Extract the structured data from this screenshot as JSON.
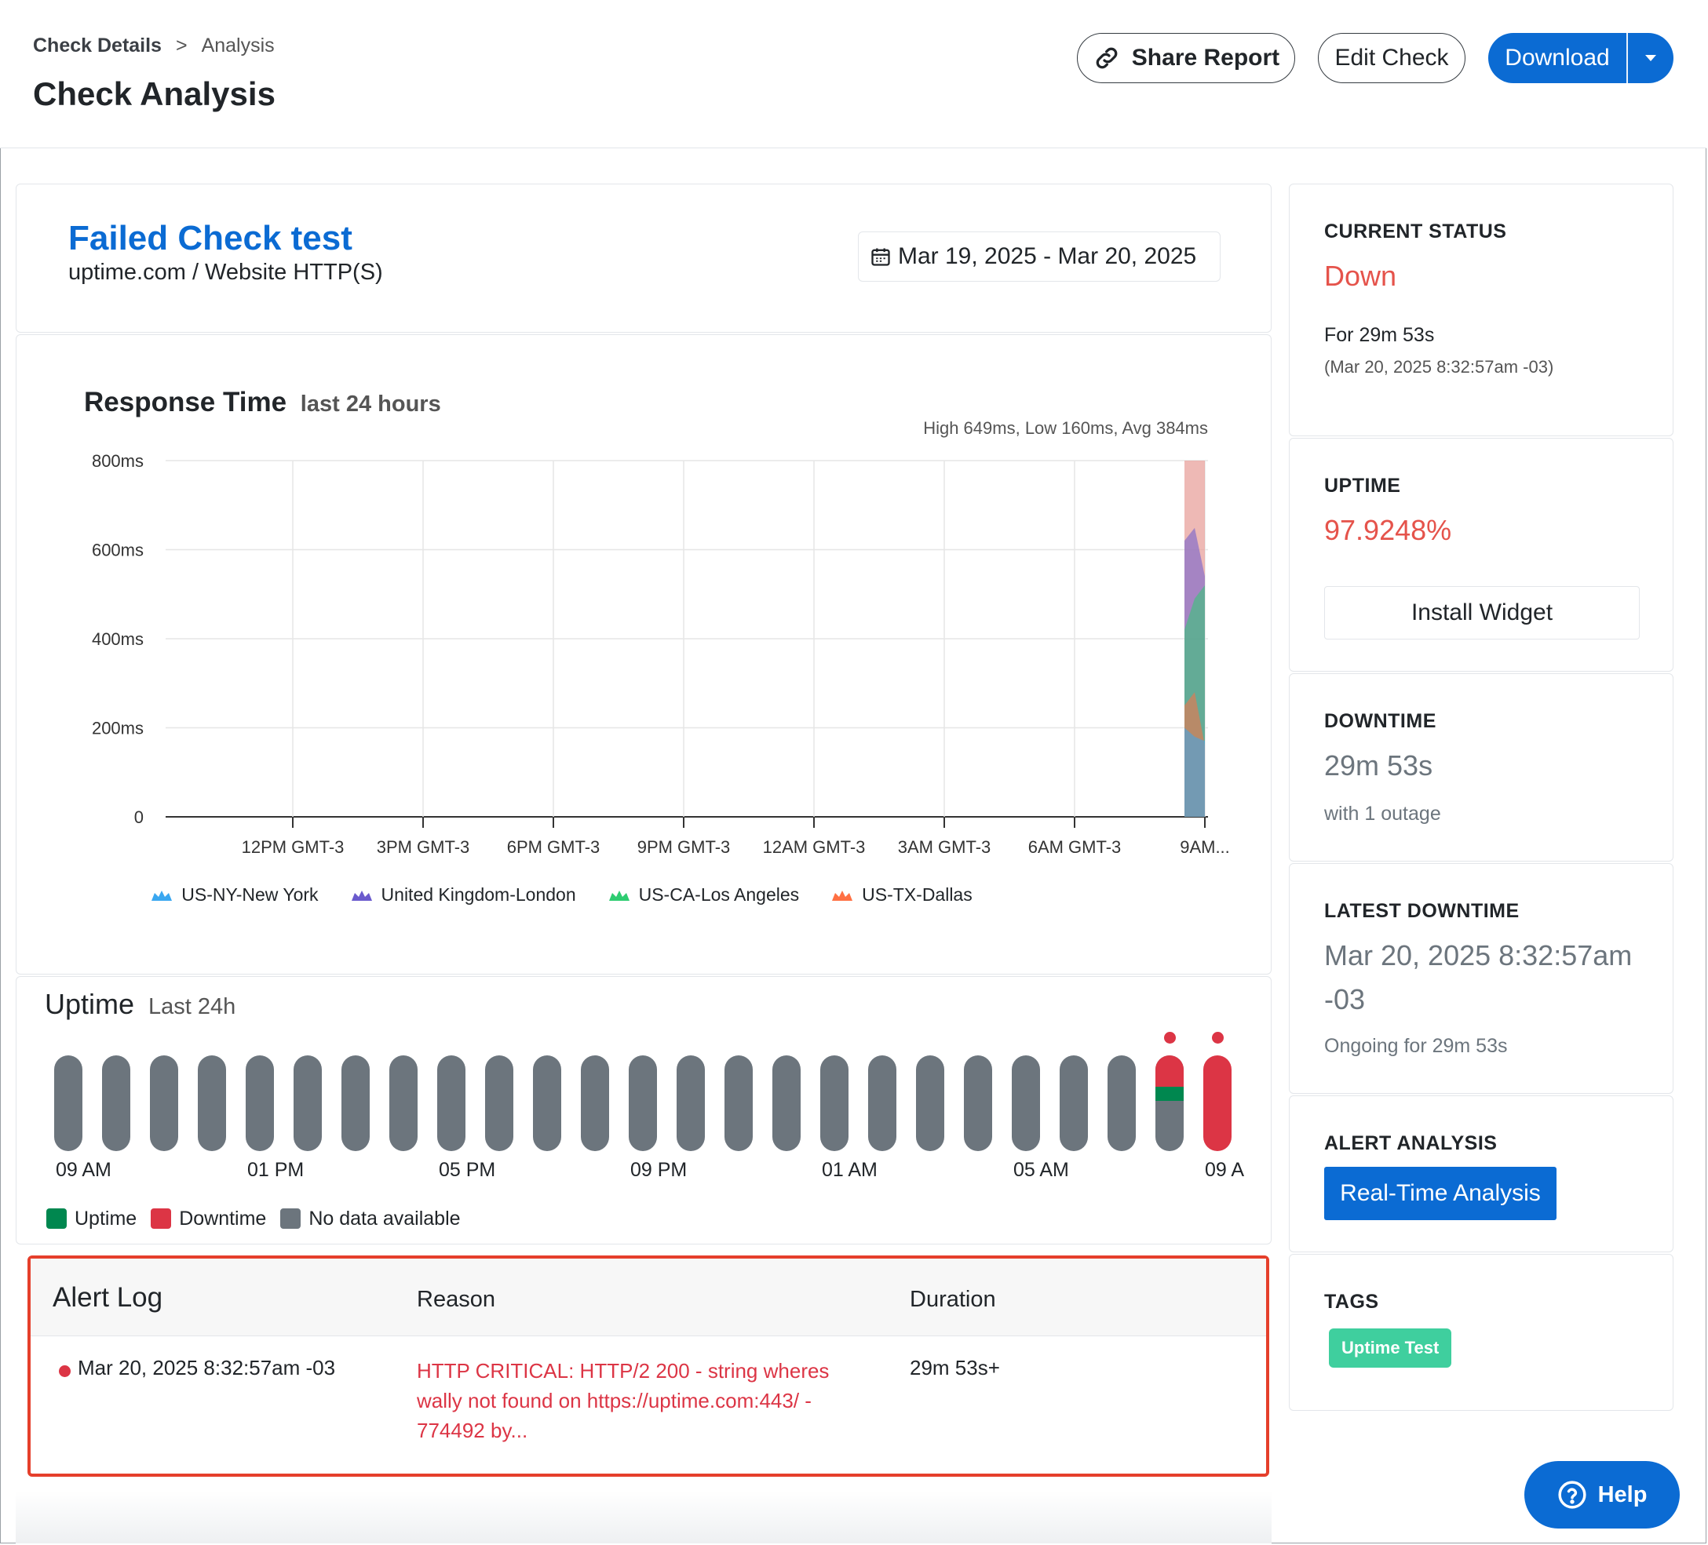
{
  "header": {
    "breadcrumb": [
      "Check Details",
      ">",
      "Analysis"
    ],
    "title": "Check Analysis",
    "share_label": "Share Report",
    "edit_label": "Edit Check",
    "download_label": "Download"
  },
  "check": {
    "name": "Failed Check test",
    "subtitle": "uptime.com / Website HTTP(S)",
    "date_range": "Mar 19, 2025 - Mar 20, 2025"
  },
  "response_chart": {
    "title": "Response Time",
    "title_sub": "last 24 hours",
    "stats": "High 649ms, Low 160ms, Avg 384ms"
  },
  "chart_data": {
    "type": "area",
    "title": "Response Time",
    "subtitle": "last 24 hours",
    "y_ticks": [
      "800ms",
      "600ms",
      "400ms",
      "200ms",
      "0"
    ],
    "y_values": [
      800,
      600,
      400,
      200,
      0
    ],
    "ylim": [
      0,
      800
    ],
    "x_ticks": [
      "12PM GMT-3",
      "3PM GMT-3",
      "6PM GMT-3",
      "9PM GMT-3",
      "12AM GMT-3",
      "3AM GMT-3",
      "6AM GMT-3",
      "9AM..."
    ],
    "grid": true,
    "legend_position": "bottom",
    "series": [
      {
        "name": "US-NY-New York",
        "color": "#3aa7f0"
      },
      {
        "name": "United Kingdom-London",
        "color": "#6a5acd"
      },
      {
        "name": "US-CA-Los Angeles",
        "color": "#2ecc71"
      },
      {
        "name": "US-TX-Dallas",
        "color": "#ff7043"
      }
    ],
    "downtime_band_color": "#e8a19c"
  },
  "uptime": {
    "title": "Uptime",
    "title_sub": "Last 24h",
    "bar_labels": [
      "09 AM",
      "01 PM",
      "05 PM",
      "09 PM",
      "01 AM",
      "05 AM",
      "09 A"
    ],
    "legend": {
      "uptime": "Uptime",
      "downtime": "Downtime",
      "nodata": "No data available"
    },
    "colors": {
      "uptime": "#00874f",
      "downtime": "#dc3545",
      "nodata": "#6c757d"
    }
  },
  "alert_log": {
    "title": "Alert Log",
    "col_reason": "Reason",
    "col_duration": "Duration",
    "rows": [
      {
        "time": "Mar 20, 2025 8:32:57am -03",
        "reason": "HTTP CRITICAL: HTTP/2 200 - string wheres wally not found on https://uptime.com:443/ - 774492 by...",
        "duration": "29m 53s+"
      }
    ]
  },
  "side": {
    "status": {
      "label": "CURRENT STATUS",
      "value": "Down",
      "for": "For 29m 53s",
      "since": "(Mar 20, 2025 8:32:57am -03)"
    },
    "uptime": {
      "label": "UPTIME",
      "value": "97.9248%",
      "button": "Install Widget"
    },
    "downtime": {
      "label": "DOWNTIME",
      "value": "29m 53s",
      "note": "with 1 outage"
    },
    "latest": {
      "label": "LATEST DOWNTIME",
      "value_line1": "Mar 20, 2025 8:32:57am",
      "value_line2": "-03",
      "note": "Ongoing for 29m 53s"
    },
    "alert": {
      "label": "ALERT ANALYSIS",
      "button": "Real-Time Analysis"
    },
    "tags": {
      "label": "TAGS",
      "tag": "Uptime Test"
    }
  },
  "help": {
    "label": "Help"
  }
}
